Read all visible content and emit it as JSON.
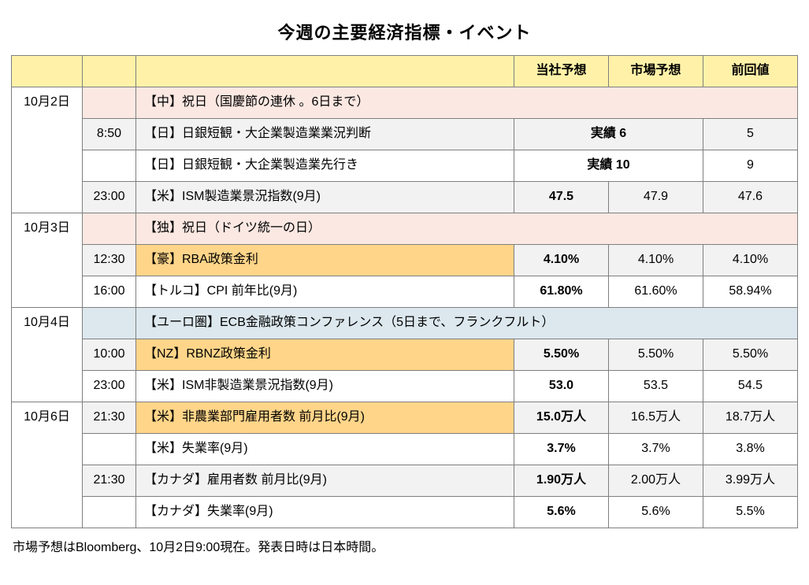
{
  "title": "今週の主要経済指標・イベント",
  "colors": {
    "header_bg": "#fff2a8",
    "row_alt_bg": "#f2f2f2",
    "row_white_bg": "#ffffff",
    "holiday_bg": "#fce8e2",
    "highlight_bg": "#ffd589",
    "ecb_bg": "#dce8ee",
    "border": "#7f7f7f",
    "text": "#000000"
  },
  "columns": [
    "",
    "",
    "",
    "当社予想",
    "市場予想",
    "前回値"
  ],
  "footnote": "市場予想はBloomberg、10月2日9:00現在。発表日時は日本時間。",
  "rows": [
    {
      "date": "10月2日",
      "time": "",
      "event": "【中】祝日（国慶節の連休 。6日まで）",
      "event_bg": "holiday_bg",
      "span_full": true
    },
    {
      "date": "",
      "time": "8:50",
      "event": "【日】日銀短観・大企業製造業業況判断",
      "ours_span": "実績 6",
      "prev": "5",
      "row_bg": "row_alt_bg"
    },
    {
      "date": "",
      "time": "",
      "event": "【日】日銀短観・大企業製造業先行き",
      "ours_span": "実績 10",
      "prev": "9",
      "row_bg": "row_white_bg"
    },
    {
      "date": "",
      "time": "23:00",
      "event": "【米】ISM製造業景況指数(9月)",
      "ours": "47.5",
      "market": "47.9",
      "prev": "47.6",
      "row_bg": "row_alt_bg"
    },
    {
      "date": "10月3日",
      "time": "",
      "event": "【独】祝日（ドイツ統一の日）",
      "event_bg": "holiday_bg",
      "span_full": true
    },
    {
      "date": "",
      "time": "12:30",
      "event": "【豪】RBA政策金利",
      "event_bg": "highlight_bg",
      "ours": "4.10%",
      "market": "4.10%",
      "prev": "4.10%",
      "row_bg": "row_alt_bg"
    },
    {
      "date": "",
      "time": "16:00",
      "event": "【トルコ】CPI 前年比(9月)",
      "ours": "61.80%",
      "market": "61.60%",
      "prev": "58.94%",
      "row_bg": "row_white_bg"
    },
    {
      "date": "10月4日",
      "time": "",
      "event": "【ユーロ圏】ECB金融政策コンファレンス（5日まで、フランクフルト）",
      "event_bg": "ecb_bg",
      "span_full": true
    },
    {
      "date": "",
      "time": "10:00",
      "event": "【NZ】RBNZ政策金利",
      "event_bg": "highlight_bg",
      "ours": "5.50%",
      "market": "5.50%",
      "prev": "5.50%",
      "row_bg": "row_alt_bg"
    },
    {
      "date": "",
      "time": "23:00",
      "event": "【米】ISM非製造業景況指数(9月)",
      "ours": "53.0",
      "market": "53.5",
      "prev": "54.5",
      "row_bg": "row_white_bg"
    },
    {
      "date": "10月6日",
      "time": "21:30",
      "event": "【米】非農業部門雇用者数 前月比(9月)",
      "event_bg": "highlight_bg",
      "ours": "15.0万人",
      "market": "16.5万人",
      "prev": "18.7万人",
      "row_bg": "row_alt_bg"
    },
    {
      "date": "",
      "time": "",
      "event": "【米】失業率(9月)",
      "ours": "3.7%",
      "market": "3.7%",
      "prev": "3.8%",
      "row_bg": "row_white_bg"
    },
    {
      "date": "",
      "time": "21:30",
      "event": "【カナダ】雇用者数 前月比(9月)",
      "ours": "1.90万人",
      "market": "2.00万人",
      "prev": "3.99万人",
      "row_bg": "row_alt_bg"
    },
    {
      "date": "",
      "time": "",
      "event": "【カナダ】失業率(9月)",
      "ours": "5.6%",
      "market": "5.6%",
      "prev": "5.5%",
      "row_bg": "row_white_bg"
    }
  ]
}
